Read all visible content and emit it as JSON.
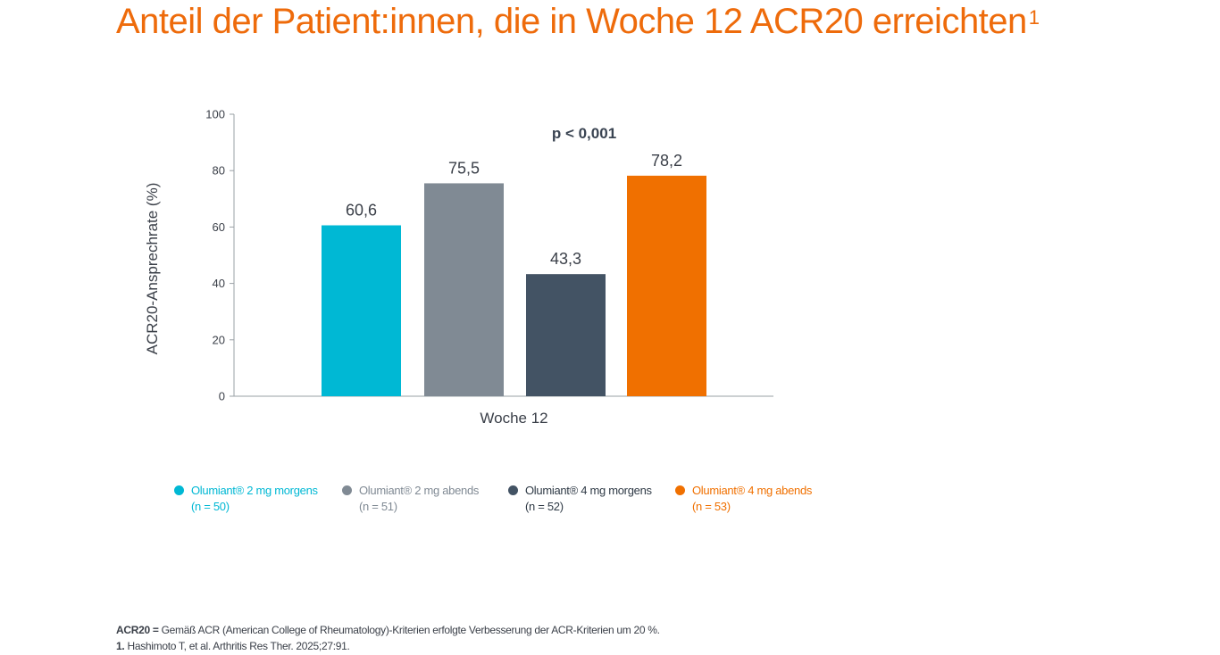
{
  "header": {
    "title": "Anteil der Patient:innen, die in Woche 12 ACR20 erreichten",
    "title_sup": "1"
  },
  "chart_data": {
    "type": "bar",
    "title": "",
    "ylabel": "ACR20-Ansprechrate (%)",
    "xlabel": "",
    "ylim": [
      0,
      100
    ],
    "yticks": [
      0,
      20,
      40,
      60,
      80,
      100
    ],
    "categories": [
      "Woche 12"
    ],
    "annotation": "p < 0,001",
    "grid": false,
    "legend_position": "bottom",
    "series": [
      {
        "name": "Olumiant® 2 mg morgens",
        "n_label": "(n = 50)",
        "values": [
          60.6
        ],
        "label": "60,6",
        "color": "#00b8d4"
      },
      {
        "name": "Olumiant® 2 mg abends",
        "n_label": "(n = 51)",
        "values": [
          75.5
        ],
        "label": "75,5",
        "color": "#808a94"
      },
      {
        "name": "Olumiant® 4 mg morgens",
        "n_label": "(n = 52)",
        "values": [
          43.3
        ],
        "label": "43,3",
        "color": "#435364"
      },
      {
        "name": "Olumiant® 4 mg abends",
        "n_label": "(n = 53)",
        "values": [
          78.2
        ],
        "label": "78,2",
        "color": "#f07000"
      }
    ]
  },
  "footnotes": {
    "abbr_term": "ACR20 =",
    "abbr_text": " Gemäß ACR (American College of Rheumatology)-Kriterien erfolgte Verbesserung der ACR-Kriterien um 20 %.",
    "ref_num": "1.",
    "ref_text": " Hashimoto T, et al. Arthritis Res Ther. 2025;27:91."
  }
}
